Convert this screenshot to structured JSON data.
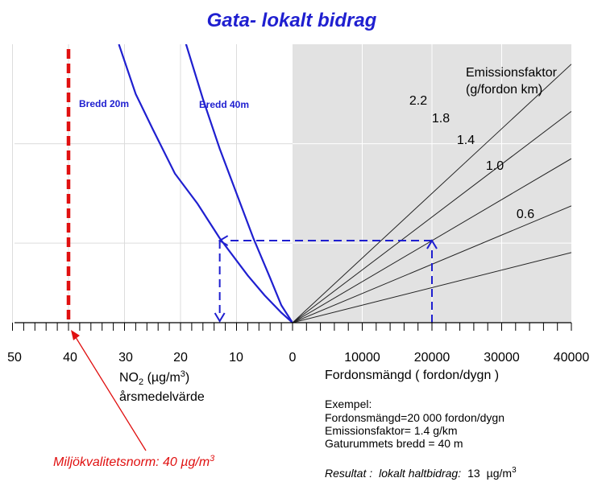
{
  "chart_data": {
    "type": "line",
    "title": "Gata- lokalt bidrag",
    "left_panel": {
      "xlabel": "NO2 (µg/m3)",
      "xlabel_line2": "årsmedelvärde",
      "x_ticks": [
        "50",
        "40",
        "30",
        "20",
        "10",
        "0"
      ],
      "xlim": [
        50,
        0
      ],
      "series": [
        {
          "name": "Bredd 20m",
          "x": [
            0,
            2,
            5,
            8,
            13,
            17,
            21,
            25,
            28,
            31
          ],
          "y": [
            0,
            0.2,
            0.55,
            0.95,
            1.7,
            2.4,
            3.0,
            3.9,
            4.6,
            5.6
          ]
        },
        {
          "name": "Bredd 40m",
          "x": [
            0,
            2,
            4,
            7,
            10,
            13,
            16,
            19,
            21.5
          ],
          "y": [
            0,
            0.35,
            0.9,
            1.7,
            2.6,
            3.5,
            4.5,
            5.6,
            6.5
          ]
        }
      ]
    },
    "right_panel": {
      "xlabel": "Fordonsmängd ( fordon/dygn )",
      "x_ticks": [
        "0",
        "10000",
        "20000",
        "30000",
        "40000"
      ],
      "xlim": [
        0,
        40000
      ],
      "legend_title": "Emissionsfaktor",
      "legend_subtitle": "(g/fordon km)",
      "series": [
        {
          "name": "2.2",
          "slope": 5.2
        },
        {
          "name": "1.8",
          "slope": 4.25
        },
        {
          "name": "1.4",
          "slope": 3.3
        },
        {
          "name": "1.0",
          "slope": 2.35
        },
        {
          "name": "0.6",
          "slope": 1.41
        }
      ]
    },
    "ylim": [
      0,
      5.6
    ],
    "example_path": {
      "traffic": 20000,
      "emission_factor": 1.4,
      "no2": 13
    },
    "norm_line": {
      "x": 40,
      "label": "Miljökvalitetsnorm: 40 µg/m3"
    }
  },
  "example_box": {
    "heading": "Exempel:",
    "lines": [
      "Fordonsmängd=20 000 fordon/dygn",
      "Emissionsfaktor= 1.4 g/km",
      "Gaturummets bredd = 40 m"
    ],
    "result_prefix": "Resultat :",
    "result_text": "lokalt haltbidrag:",
    "result_value": "13",
    "result_unit": "µg/m3"
  },
  "colors": {
    "curve": "#1f1fd0",
    "norm": "#e01010",
    "panel_shade": "#e2e2e2",
    "grid": "#dcdcdc"
  }
}
